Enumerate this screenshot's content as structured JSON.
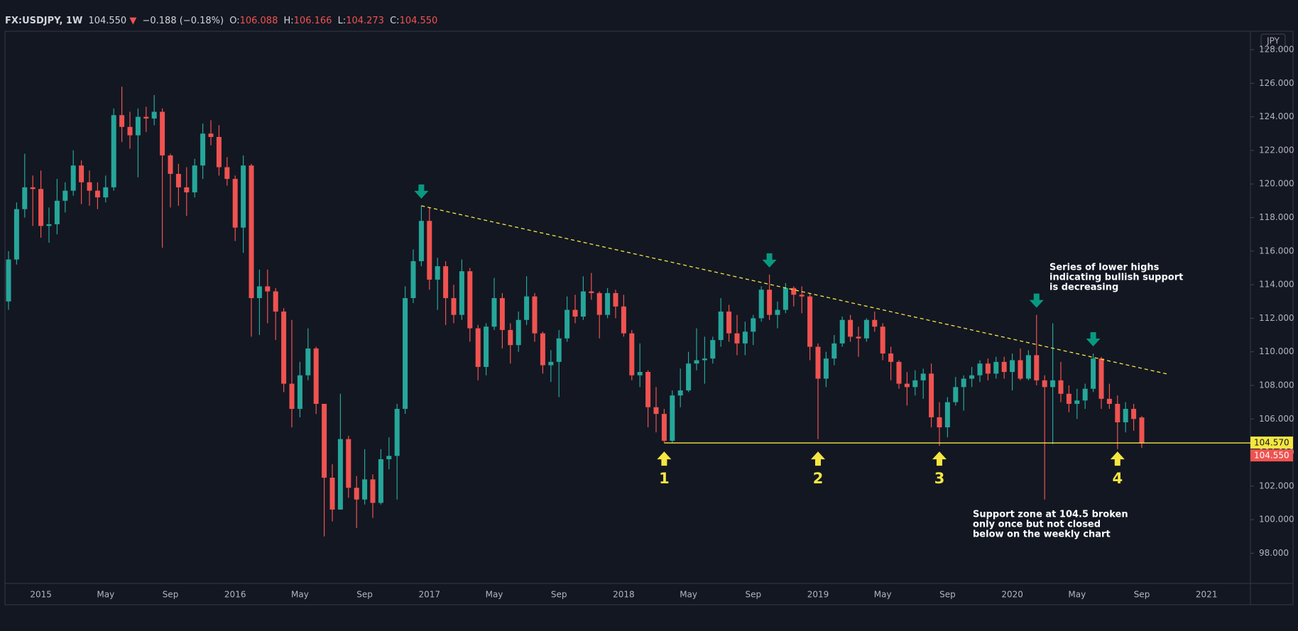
{
  "header": {
    "symbol": "FX:USDJPY, 1W",
    "last": "104.550",
    "arrow": "▼",
    "change": "−0.188 (−0.18%)",
    "o": "O:",
    "h": "H:",
    "l": "L:",
    "c": "C:"
  },
  "chart_data": {
    "type": "candlestick",
    "categories": [
      null,
      null,
      null,
      null,
      "2015",
      null,
      null,
      null,
      null,
      null,
      null,
      null,
      "May",
      null,
      null,
      null,
      null,
      null,
      null,
      null,
      "Sep",
      null,
      null,
      null,
      null,
      null,
      null,
      null,
      "2016",
      null,
      null,
      null,
      null,
      null,
      null,
      null,
      "May",
      null,
      null,
      null,
      null,
      null,
      null,
      null,
      "Sep",
      null,
      null,
      null,
      null,
      null,
      null,
      null,
      "2017",
      null,
      null,
      null,
      null,
      null,
      null,
      null,
      "May",
      null,
      null,
      null,
      null,
      null,
      null,
      null,
      "Sep",
      null,
      null,
      null,
      null,
      null,
      null,
      null,
      "2018",
      null,
      null,
      null,
      null,
      null,
      null,
      null,
      "May",
      null,
      null,
      null,
      null,
      null,
      null,
      null,
      "Sep",
      null,
      null,
      null,
      null,
      null,
      null,
      null,
      "2019",
      null,
      null,
      null,
      null,
      null,
      null,
      null,
      "May",
      null,
      null,
      null,
      null,
      null,
      null,
      null,
      "Sep",
      null,
      null,
      null,
      null,
      null,
      null,
      null,
      "2020",
      null,
      null,
      null,
      null,
      null,
      null,
      null,
      "May",
      null,
      null,
      null,
      null,
      null,
      null,
      null,
      "Sep",
      null,
      null,
      null,
      null,
      null,
      null,
      null,
      "2021"
    ],
    "open": [
      113.0,
      115.5,
      118.5,
      119.8,
      119.7,
      117.5,
      117.6,
      119.0,
      119.6,
      121.1,
      120.1,
      119.6,
      119.2,
      119.8,
      124.1,
      123.4,
      122.9,
      124.0,
      123.9,
      124.3,
      121.7,
      120.6,
      119.8,
      119.5,
      121.1,
      123.0,
      122.8,
      121.0,
      120.3,
      117.4,
      121.1,
      113.2,
      113.9,
      113.6,
      112.4,
      108.1,
      106.6,
      108.6,
      110.2,
      106.9,
      102.5,
      100.6,
      104.8,
      101.9,
      101.2,
      102.4,
      101.0,
      103.6,
      103.8,
      106.6,
      113.2,
      115.4,
      117.8,
      114.3,
      115.1,
      113.2,
      112.2,
      114.8,
      111.4,
      109.1,
      111.5,
      113.2,
      111.3,
      110.4,
      111.9,
      113.3,
      111.1,
      109.2,
      109.4,
      110.8,
      112.5,
      112.1,
      113.6,
      113.5,
      112.2,
      113.5,
      112.7,
      111.1,
      108.6,
      108.8,
      106.7,
      106.3,
      104.7,
      107.4,
      107.7,
      109.3,
      109.5,
      109.6,
      110.7,
      112.4,
      111.1,
      110.5,
      111.2,
      112.0,
      113.7,
      112.2,
      112.5,
      113.8,
      113.4,
      113.3,
      110.3,
      108.4,
      109.6,
      110.5,
      111.9,
      110.9,
      110.8,
      111.9,
      111.5,
      109.9,
      109.4,
      108.1,
      107.9,
      108.3,
      108.7,
      106.1,
      105.5,
      107.0,
      107.9,
      108.4,
      108.6,
      109.3,
      108.7,
      109.4,
      108.8,
      109.5,
      108.4,
      109.8,
      108.3,
      107.9,
      108.3,
      107.5,
      106.9,
      107.1,
      107.8,
      109.6,
      107.2,
      106.9,
      105.8,
      106.6,
      106.088,
      null,
      null,
      null,
      null,
      null,
      null,
      null,
      null
    ],
    "high": [
      116.0,
      118.9,
      121.8,
      120.5,
      120.8,
      118.6,
      120.3,
      120.1,
      122.0,
      121.4,
      120.8,
      120.1,
      120.5,
      124.5,
      125.8,
      124.3,
      124.5,
      124.6,
      125.3,
      124.5,
      121.8,
      121.2,
      121.0,
      121.5,
      123.6,
      123.8,
      123.5,
      121.6,
      120.5,
      121.7,
      121.2,
      114.9,
      114.9,
      113.8,
      112.6,
      111.9,
      109.4,
      111.4,
      110.3,
      106.9,
      103.3,
      107.5,
      105.0,
      102.6,
      104.2,
      102.7,
      104.2,
      104.9,
      106.9,
      113.9,
      116.1,
      118.7,
      118.6,
      115.6,
      115.4,
      114.0,
      115.5,
      115.0,
      111.6,
      111.7,
      114.4,
      113.5,
      111.7,
      112.4,
      114.5,
      113.5,
      111.2,
      110.1,
      111.3,
      113.3,
      113.4,
      114.5,
      114.7,
      113.6,
      113.8,
      113.7,
      113.4,
      111.3,
      110.5,
      108.9,
      107.9,
      106.6,
      107.7,
      109.0,
      110.0,
      111.4,
      110.9,
      110.9,
      113.2,
      112.8,
      112.2,
      111.8,
      112.2,
      113.9,
      114.6,
      113.0,
      114.1,
      113.9,
      113.9,
      113.5,
      110.5,
      110.0,
      111.0,
      112.1,
      112.2,
      111.5,
      112.0,
      112.4,
      111.7,
      110.3,
      109.5,
      108.8,
      108.9,
      109.0,
      109.3,
      107.0,
      107.3,
      108.5,
      108.6,
      109.1,
      109.5,
      109.6,
      109.7,
      109.7,
      109.9,
      110.2,
      110.1,
      112.2,
      108.6,
      111.7,
      109.4,
      108.0,
      107.8,
      108.1,
      109.9,
      109.7,
      108.1,
      107.4,
      107.0,
      106.9,
      106.166,
      null,
      null,
      null,
      null,
      null,
      null,
      null,
      null
    ],
    "low": [
      112.5,
      115.2,
      118.0,
      117.5,
      116.8,
      116.5,
      117.0,
      118.3,
      119.3,
      118.8,
      118.7,
      118.5,
      118.9,
      119.6,
      122.5,
      122.1,
      120.4,
      123.1,
      123.5,
      116.2,
      118.6,
      118.7,
      118.1,
      119.2,
      120.3,
      122.3,
      120.5,
      119.9,
      116.6,
      115.9,
      110.9,
      111.0,
      111.7,
      110.7,
      107.6,
      105.5,
      106.1,
      108.3,
      106.3,
      99.0,
      99.9,
      100.6,
      101.3,
      99.5,
      100.9,
      100.1,
      100.9,
      103.0,
      101.2,
      106.3,
      112.9,
      115.1,
      113.7,
      112.5,
      111.6,
      111.7,
      111.9,
      110.6,
      108.3,
      108.6,
      111.3,
      110.2,
      109.3,
      110.0,
      111.6,
      110.6,
      108.7,
      108.2,
      107.3,
      110.6,
      111.7,
      111.9,
      113.1,
      110.8,
      112.0,
      112.0,
      110.9,
      108.3,
      107.9,
      105.5,
      105.2,
      104.6,
      104.6,
      106.7,
      107.6,
      108.9,
      108.1,
      109.3,
      110.3,
      110.6,
      109.8,
      109.8,
      110.4,
      111.8,
      111.9,
      111.4,
      112.3,
      112.7,
      112.3,
      109.5,
      104.8,
      107.9,
      109.2,
      110.3,
      110.6,
      109.7,
      110.6,
      111.2,
      109.5,
      108.3,
      107.8,
      106.8,
      107.4,
      107.2,
      105.5,
      104.4,
      104.9,
      106.8,
      106.5,
      107.9,
      108.2,
      108.3,
      108.4,
      108.4,
      107.7,
      108.3,
      108.3,
      108.0,
      101.2,
      104.5,
      107.0,
      106.4,
      106.0,
      106.6,
      107.6,
      106.6,
      106.6,
      104.2,
      105.2,
      105.3,
      104.273,
      null,
      null,
      null,
      null,
      null,
      null,
      null,
      null
    ],
    "close": [
      115.5,
      118.5,
      119.8,
      119.7,
      117.5,
      117.6,
      119.0,
      119.6,
      121.1,
      120.1,
      119.6,
      119.2,
      119.8,
      124.1,
      123.4,
      122.9,
      124.0,
      123.9,
      124.3,
      121.7,
      120.6,
      119.8,
      119.5,
      121.1,
      123.0,
      122.8,
      121.0,
      120.3,
      117.4,
      121.1,
      113.2,
      113.9,
      113.6,
      112.4,
      108.1,
      106.6,
      108.6,
      110.2,
      106.9,
      102.5,
      100.6,
      104.8,
      101.9,
      101.2,
      102.4,
      101.0,
      103.6,
      103.8,
      106.6,
      113.2,
      115.4,
      117.8,
      114.3,
      115.1,
      113.2,
      112.2,
      114.8,
      111.4,
      109.1,
      111.5,
      113.2,
      111.3,
      110.4,
      111.9,
      113.3,
      111.1,
      109.2,
      109.4,
      110.8,
      112.5,
      112.1,
      113.6,
      113.5,
      112.2,
      113.5,
      112.7,
      111.1,
      108.6,
      108.8,
      106.7,
      106.3,
      104.7,
      107.4,
      107.7,
      109.3,
      109.5,
      109.6,
      110.7,
      112.4,
      111.1,
      110.5,
      111.2,
      112.0,
      113.7,
      112.2,
      112.5,
      113.8,
      113.4,
      113.3,
      110.3,
      108.4,
      109.6,
      110.5,
      111.9,
      110.9,
      110.8,
      111.9,
      111.5,
      109.9,
      109.4,
      108.1,
      107.9,
      108.3,
      108.7,
      106.1,
      105.5,
      107.0,
      107.9,
      108.4,
      108.6,
      109.3,
      108.7,
      109.4,
      108.8,
      109.5,
      108.4,
      109.8,
      108.3,
      107.9,
      108.3,
      107.5,
      106.9,
      107.1,
      107.8,
      109.6,
      107.2,
      106.9,
      105.8,
      106.6,
      106.0,
      104.55,
      null,
      null,
      null,
      null,
      null,
      null,
      null,
      null
    ],
    "up_color": "#26a69a",
    "down_color": "#ef5350",
    "ylim": [
      96.2,
      129.1
    ],
    "yticks": [
      {
        "value": 98,
        "label": "98.000"
      },
      {
        "value": 100,
        "label": "100.000"
      },
      {
        "value": 102,
        "label": "102.000"
      },
      {
        "value": 104,
        "label": "104.000"
      },
      {
        "value": 106,
        "label": "106.000"
      },
      {
        "value": 108,
        "label": "108.000"
      },
      {
        "value": 110,
        "label": "110.000"
      },
      {
        "value": 112,
        "label": "112.000"
      },
      {
        "value": 114,
        "label": "114.000"
      },
      {
        "value": 116,
        "label": "116.000"
      },
      {
        "value": 118,
        "label": "118.000"
      },
      {
        "value": 120,
        "label": "120.000"
      },
      {
        "value": 122,
        "label": "122.000"
      },
      {
        "value": 124,
        "label": "124.000"
      },
      {
        "value": 126,
        "label": "126.000"
      },
      {
        "value": 128,
        "label": "128.000"
      }
    ],
    "y_axis_unit": "JPY",
    "support": {
      "value": 104.57,
      "label": "104.570",
      "color": "#f5e642"
    },
    "touch_labels": [
      "1",
      "2",
      "3",
      "4"
    ],
    "lower_highs_note": [
      "Series of lower highs",
      "indicating bullish support",
      "is decreasing"
    ],
    "support_note": [
      "Support zone at 104.5 broken",
      "only once but not closed",
      "below on the weekly chart"
    ]
  }
}
